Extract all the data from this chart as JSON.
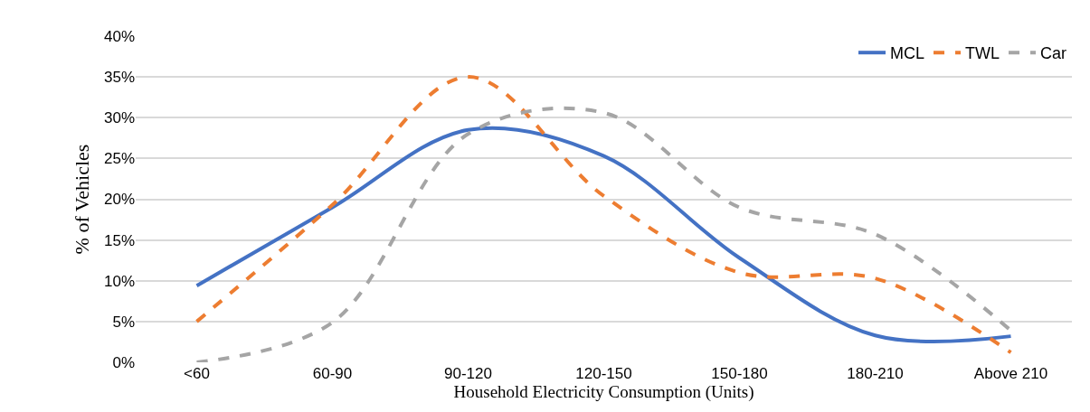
{
  "chart_data": {
    "type": "line",
    "xlabel": "Household Electricity Consumption (Units)",
    "ylabel": "% of Vehicles",
    "categories": [
      "<60",
      "60-90",
      "90-120",
      "120-150",
      "150-180",
      "180-210",
      "Above 210"
    ],
    "series": [
      {
        "name": "MCL",
        "color": "#4472c4",
        "line_style": "solid",
        "values": [
          9.4,
          19,
          28.5,
          25.3,
          12.8,
          3.3,
          3.2
        ]
      },
      {
        "name": "TWL",
        "color": "#ed7d31",
        "line_style": "dashed",
        "values": [
          5,
          19.3,
          35,
          20.4,
          11,
          10.3,
          1.2
        ]
      },
      {
        "name": "Car",
        "color": "#a5a5a5",
        "line_style": "dashed",
        "values": [
          0,
          4.9,
          28,
          30.6,
          19,
          15.7,
          3.9
        ]
      }
    ],
    "ylim": [
      0,
      40
    ],
    "yticks": [
      {
        "value": 0,
        "label": "0%"
      },
      {
        "value": 5,
        "label": "5%"
      },
      {
        "value": 10,
        "label": "10%"
      },
      {
        "value": 15,
        "label": "15%"
      },
      {
        "value": 20,
        "label": "20%"
      },
      {
        "value": 25,
        "label": "25%"
      },
      {
        "value": 30,
        "label": "30%"
      },
      {
        "value": 35,
        "label": "35%"
      },
      {
        "value": 40,
        "label": "40%"
      }
    ],
    "grid": "y",
    "legend": "top right",
    "marker": "none"
  }
}
